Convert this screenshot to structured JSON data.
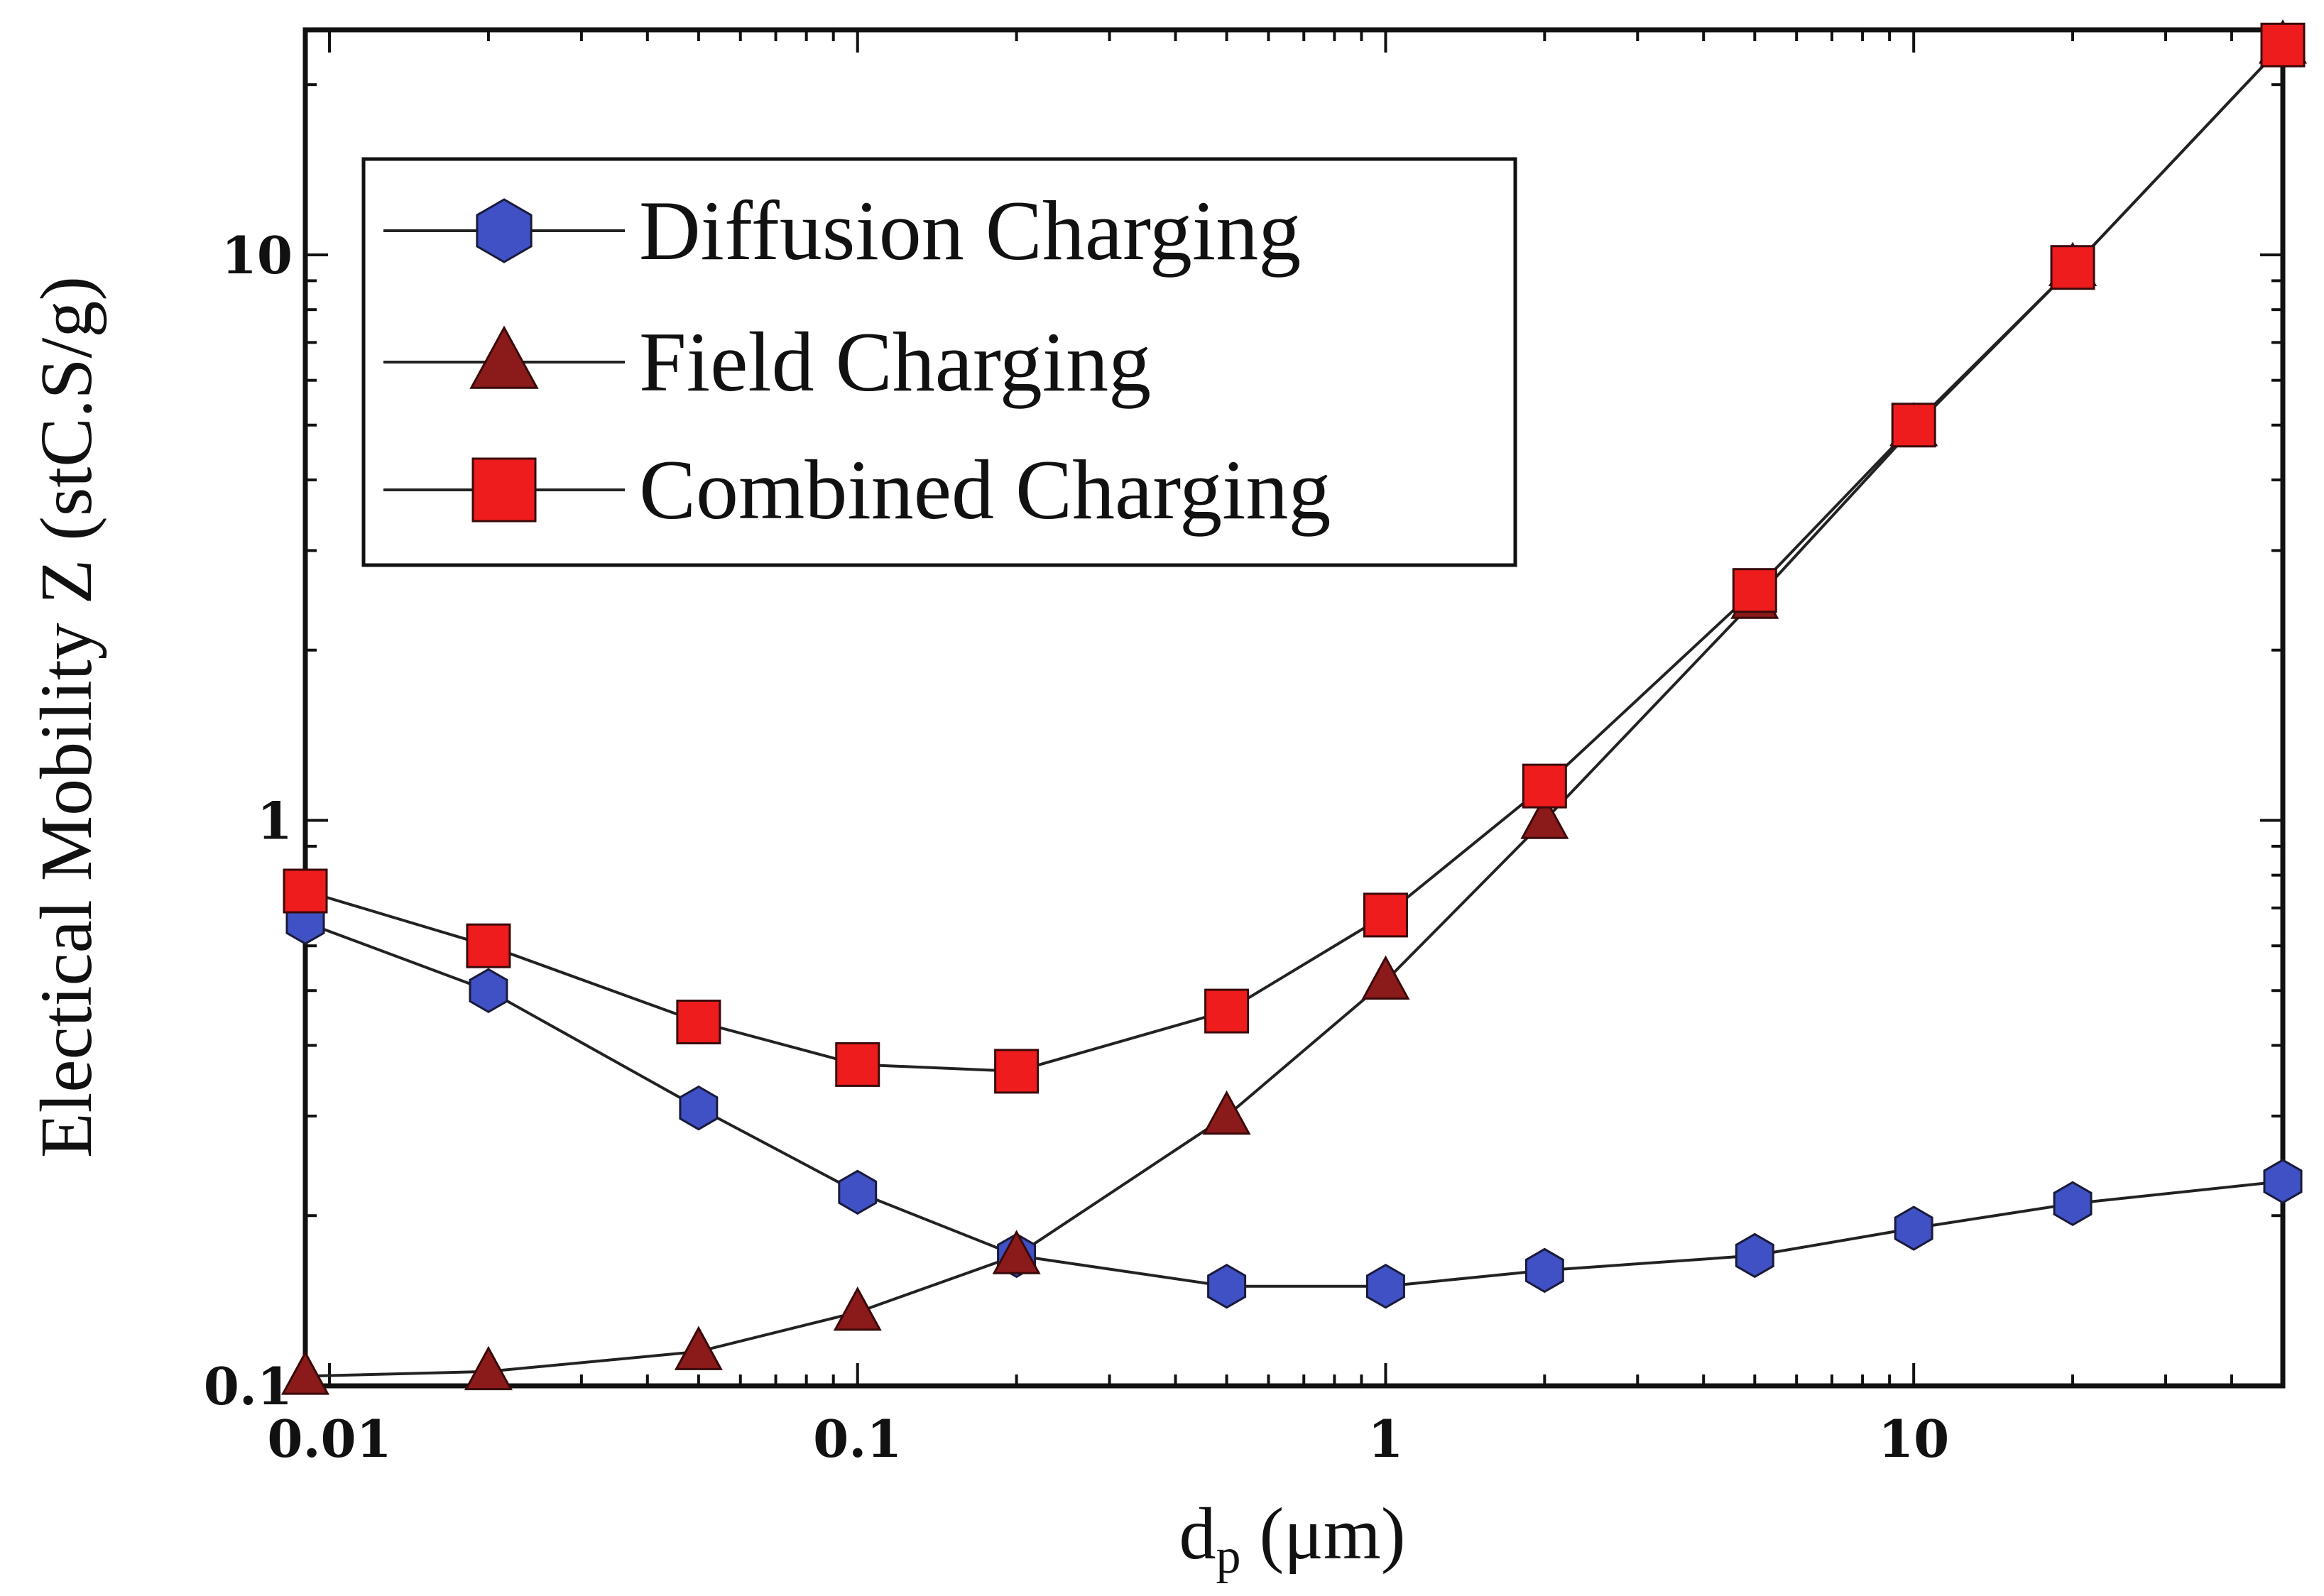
{
  "chart_data": {
    "type": "line",
    "xscale": "log",
    "yscale": "log",
    "xlim": [
      0.009,
      50
    ],
    "ylim": [
      0.1,
      25
    ],
    "xlabel_main": "d",
    "xlabel_sub": "p",
    "xlabel_unit": "(μm)",
    "ylabel": "Electical Mobility Z (stC.S/g)",
    "xticks": [
      {
        "value": 0.01,
        "label": "0.01"
      },
      {
        "value": 0.1,
        "label": "0.1"
      },
      {
        "value": 1,
        "label": "1"
      },
      {
        "value": 10,
        "label": "10"
      }
    ],
    "yticks": [
      {
        "value": 0.1,
        "label": "0.1"
      },
      {
        "value": 1,
        "label": "1"
      },
      {
        "value": 10,
        "label": "10"
      }
    ],
    "legend_position": "top-left",
    "series": [
      {
        "name": "Diffusion Charging",
        "marker": "hexagon",
        "color": "#3f51c4",
        "x": [
          0.009,
          0.02,
          0.05,
          0.1,
          0.2,
          0.5,
          1,
          2,
          5,
          10,
          20,
          50
        ],
        "y": [
          0.66,
          0.5,
          0.31,
          0.22,
          0.17,
          0.15,
          0.15,
          0.16,
          0.17,
          0.19,
          0.21,
          0.23
        ]
      },
      {
        "name": "Field Charging",
        "marker": "triangle",
        "color": "#8b1a1a",
        "x": [
          0.009,
          0.02,
          0.05,
          0.1,
          0.2,
          0.5,
          1,
          2,
          5,
          10,
          20,
          50
        ],
        "y": [
          0.104,
          0.106,
          0.115,
          0.135,
          0.17,
          0.3,
          0.52,
          1.0,
          2.45,
          4.95,
          9.5,
          23.5
        ]
      },
      {
        "name": "Combined Charging",
        "marker": "square",
        "color": "#ee1c1c",
        "x": [
          0.009,
          0.02,
          0.05,
          0.1,
          0.2,
          0.5,
          1,
          2,
          5,
          10,
          20,
          50
        ],
        "y": [
          0.75,
          0.6,
          0.44,
          0.37,
          0.36,
          0.46,
          0.68,
          1.15,
          2.55,
          5.0,
          9.5,
          23.5
        ]
      }
    ]
  }
}
